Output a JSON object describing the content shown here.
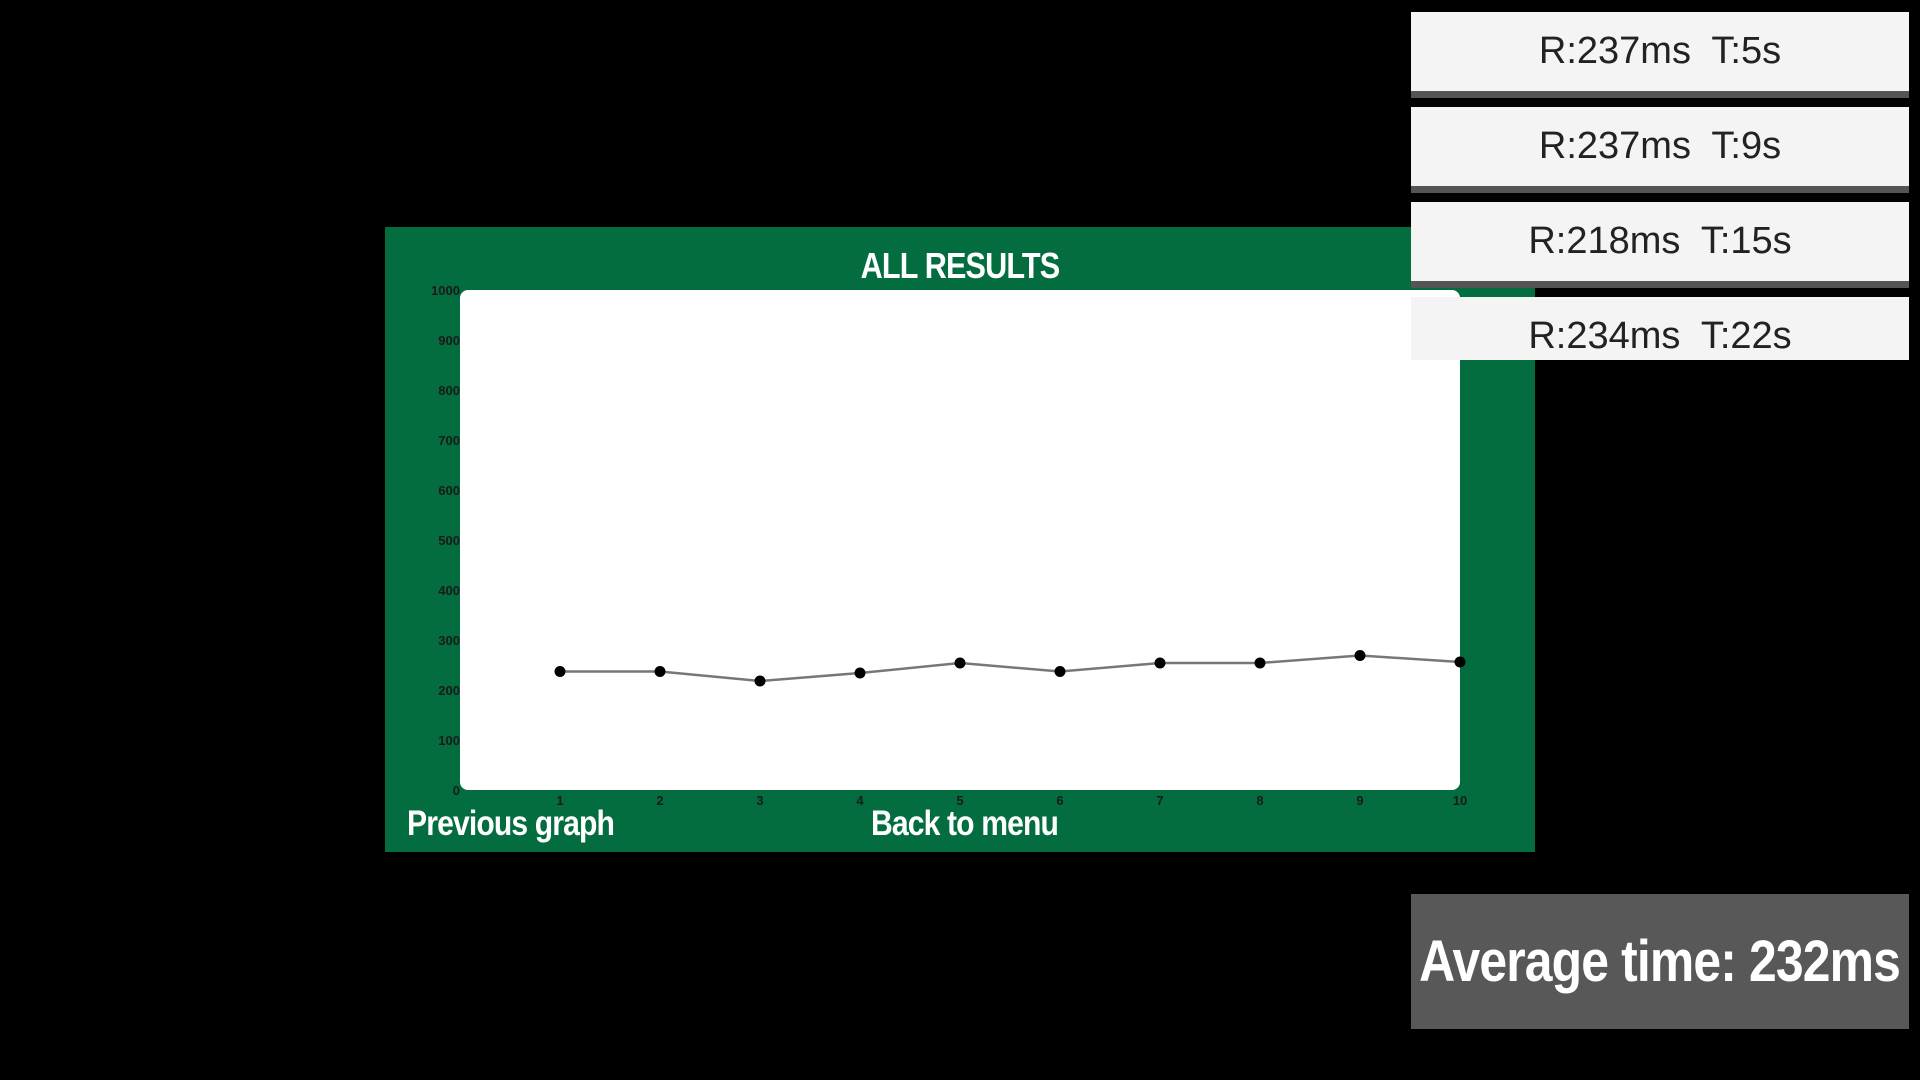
{
  "panel": {
    "title": "ALL RESULTS",
    "prev_label": "Previous graph",
    "menu_label": "Back to menu"
  },
  "results": [
    {
      "label": "R:237ms  T:5s"
    },
    {
      "label": "R:237ms  T:9s"
    },
    {
      "label": "R:218ms  T:15s"
    },
    {
      "label": "R:234ms  T:22s"
    }
  ],
  "average": {
    "label": "Average time: 232ms"
  },
  "colors": {
    "panel_bg": "#036d40",
    "line": "#777777",
    "point": "#000000"
  },
  "chart_data": {
    "type": "line",
    "x": [
      1,
      2,
      3,
      4,
      5,
      6,
      7,
      8,
      9,
      10
    ],
    "series": [
      {
        "values": [
          237,
          237,
          218,
          234,
          254,
          237,
          254,
          254,
          269,
          256
        ]
      }
    ],
    "ylim": [
      0,
      1000
    ],
    "xlim": [
      1,
      10
    ],
    "yticks": [
      0,
      100,
      200,
      300,
      400,
      500,
      600,
      700,
      800,
      900,
      1000
    ],
    "xticks": [
      1,
      2,
      3,
      4,
      5,
      6,
      7,
      8,
      9,
      10
    ],
    "grid": false
  }
}
